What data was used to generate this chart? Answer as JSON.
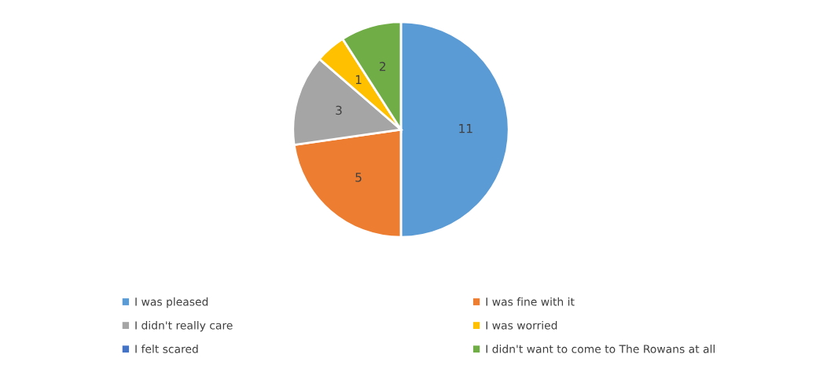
{
  "chart_data": {
    "type": "pie",
    "categories": [
      "I was pleased",
      "I was fine with it",
      "I didn't really care",
      "I was worried",
      "I felt scared",
      "I didn't want to come to The Rowans at all"
    ],
    "values": [
      11,
      5,
      3,
      1,
      0,
      2
    ],
    "colors": [
      "#5b9bd5",
      "#ed7d31",
      "#a5a5a5",
      "#ffc000",
      "#4472c4",
      "#70ad47"
    ],
    "value_labels": [
      "11",
      "5",
      "3",
      "1",
      null,
      "2"
    ],
    "legend": "bottom"
  }
}
